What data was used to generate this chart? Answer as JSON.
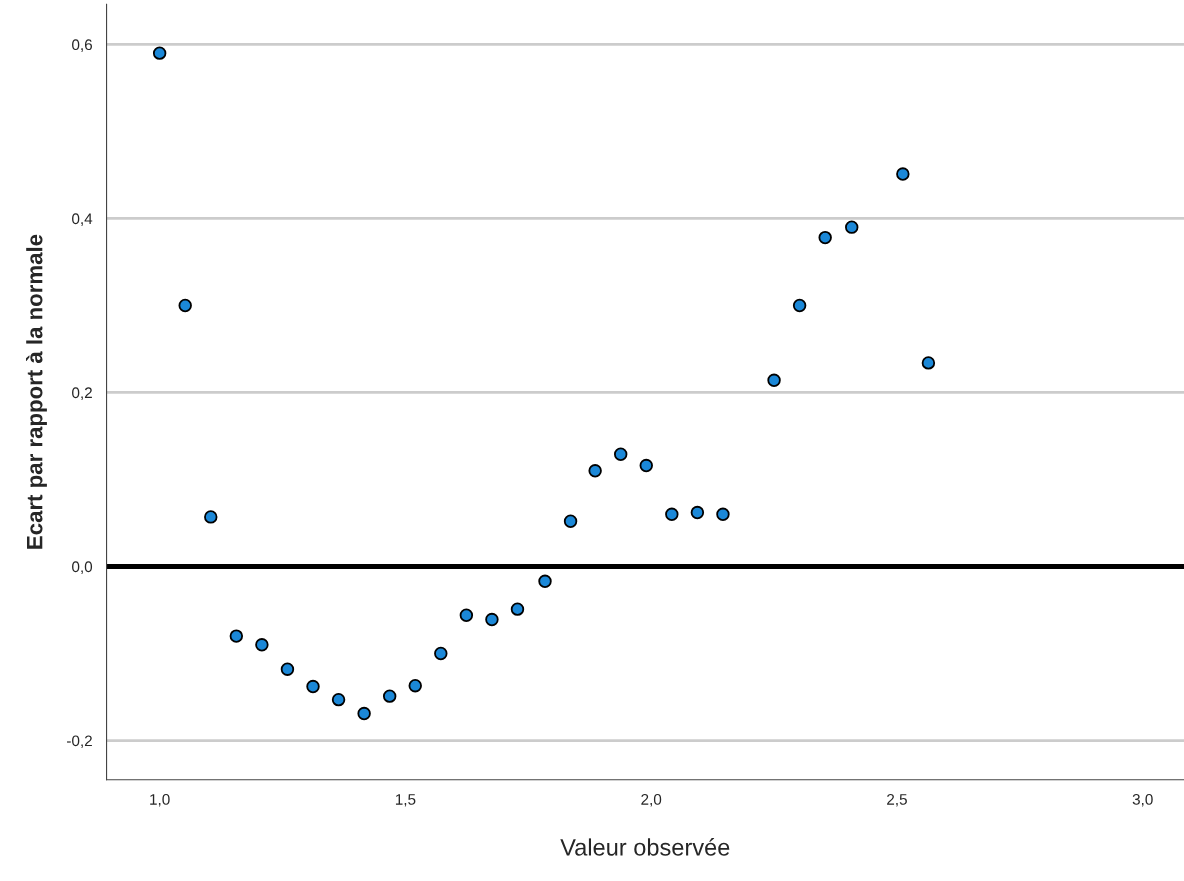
{
  "chart_data": {
    "type": "scatter",
    "xlabel": "Valeur observée",
    "ylabel": "Ecart par rapport à la normale",
    "x": [
      1.0,
      1.052,
      1.104,
      1.156,
      1.208,
      1.26,
      1.312,
      1.364,
      1.416,
      1.468,
      1.52,
      1.572,
      1.624,
      1.676,
      1.728,
      1.784,
      1.836,
      1.886,
      1.938,
      1.99,
      2.042,
      2.094,
      2.146,
      2.25,
      2.302,
      2.354,
      2.408,
      2.512,
      2.564
    ],
    "series": [
      {
        "color": "#1b88d8",
        "values": [
          0.59,
          0.3,
          0.057,
          -0.08,
          -0.09,
          -0.118,
          -0.138,
          -0.153,
          -0.169,
          -0.149,
          -0.137,
          -0.1,
          -0.056,
          -0.061,
          -0.049,
          -0.017,
          0.052,
          0.11,
          0.129,
          0.116,
          0.06,
          0.062,
          0.06,
          0.214,
          0.3,
          0.378,
          0.39,
          0.451,
          0.234
        ]
      }
    ],
    "marker": "circle",
    "grid": "y",
    "legend": false,
    "xlim": [
      0.892,
      3.084
    ],
    "ylim": [
      -0.245,
      0.646
    ],
    "xticks": [
      {
        "value": 1.0,
        "label": "1,0"
      },
      {
        "value": 1.5,
        "label": "1,5"
      },
      {
        "value": 2.0,
        "label": "2,0"
      },
      {
        "value": 2.5,
        "label": "2,5"
      },
      {
        "value": 3.0,
        "label": "3,0"
      }
    ],
    "yticks": [
      {
        "value": -0.2,
        "label": "-0,2"
      },
      {
        "value": 0.0,
        "label": "0,0"
      },
      {
        "value": 0.2,
        "label": "0,2"
      },
      {
        "value": 0.4,
        "label": "0,4"
      },
      {
        "value": 0.6,
        "label": "0,6"
      }
    ],
    "ref_lines": [
      {
        "axis": "y",
        "value": 0.0,
        "color": "#000000",
        "line_style": "solid"
      }
    ]
  }
}
